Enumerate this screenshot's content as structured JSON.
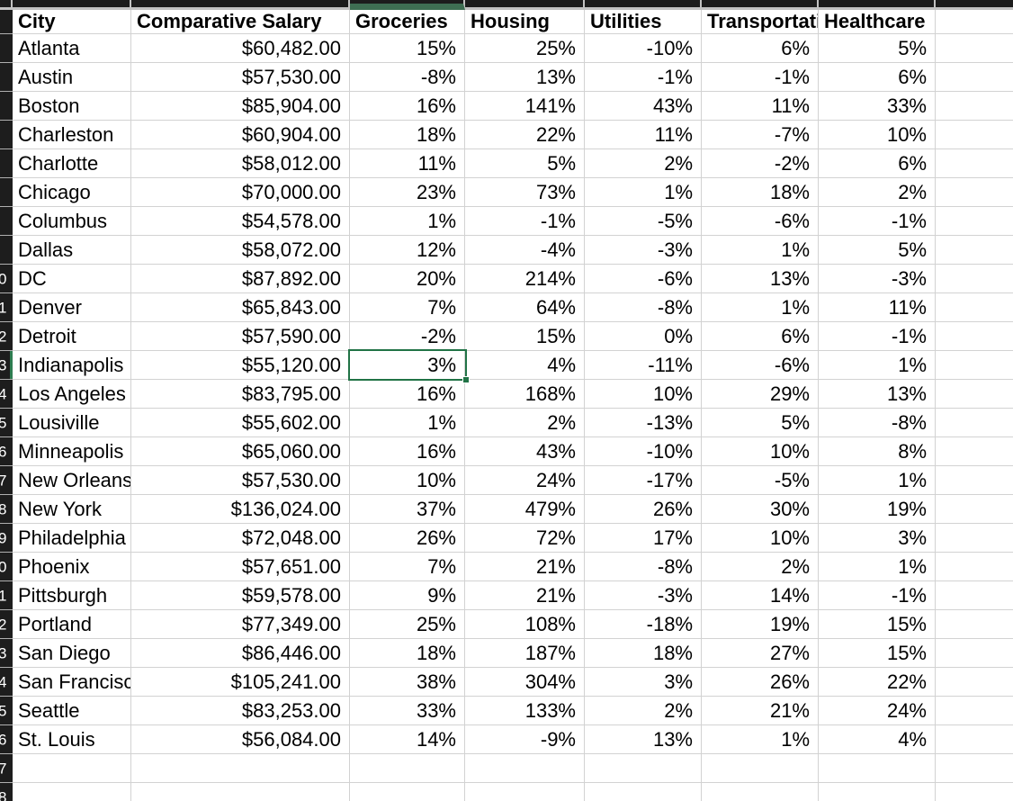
{
  "colors": {
    "selection_border": "#217346",
    "strip_bg": "#1c1c1c",
    "strip_selected": "#3e6e52",
    "strip_line": "#c2c2c2",
    "gutter_bg": "#1d1d1d",
    "gutter_line": "#b0b0b0",
    "gutter_sel": "#2e7d51",
    "gutter_text": "#ffffff",
    "gridline": "#d2d2d2",
    "text": "#000000"
  },
  "sheet": {
    "columns": [
      {
        "label": "City"
      },
      {
        "label": "Comparative Salary"
      },
      {
        "label": "Groceries"
      },
      {
        "label": "Housing"
      },
      {
        "label": "Utilities"
      },
      {
        "label": "Transportation"
      },
      {
        "label": "Healthcare"
      }
    ],
    "header_gutter": "",
    "rows": [
      {
        "gutter": "",
        "city": "Atlanta",
        "salary": "$60,482.00",
        "groceries": "15%",
        "housing": "25%",
        "utilities": "-10%",
        "transportation": "6%",
        "healthcare": "5%"
      },
      {
        "gutter": "",
        "city": "Austin",
        "salary": "$57,530.00",
        "groceries": "-8%",
        "housing": "13%",
        "utilities": "-1%",
        "transportation": "-1%",
        "healthcare": "6%"
      },
      {
        "gutter": "",
        "city": "Boston",
        "salary": "$85,904.00",
        "groceries": "16%",
        "housing": "141%",
        "utilities": "43%",
        "transportation": "11%",
        "healthcare": "33%"
      },
      {
        "gutter": "",
        "city": "Charleston",
        "salary": "$60,904.00",
        "groceries": "18%",
        "housing": "22%",
        "utilities": "11%",
        "transportation": "-7%",
        "healthcare": "10%"
      },
      {
        "gutter": "",
        "city": "Charlotte",
        "salary": "$58,012.00",
        "groceries": "11%",
        "housing": "5%",
        "utilities": "2%",
        "transportation": "-2%",
        "healthcare": "6%"
      },
      {
        "gutter": "",
        "city": "Chicago",
        "salary": "$70,000.00",
        "groceries": "23%",
        "housing": "73%",
        "utilities": "1%",
        "transportation": "18%",
        "healthcare": "2%"
      },
      {
        "gutter": "",
        "city": "Columbus",
        "salary": "$54,578.00",
        "groceries": "1%",
        "housing": "-1%",
        "utilities": "-5%",
        "transportation": "-6%",
        "healthcare": "-1%"
      },
      {
        "gutter": "",
        "city": "Dallas",
        "salary": "$58,072.00",
        "groceries": "12%",
        "housing": "-4%",
        "utilities": "-3%",
        "transportation": "1%",
        "healthcare": "5%"
      },
      {
        "gutter": "0",
        "city": "DC",
        "salary": "$87,892.00",
        "groceries": "20%",
        "housing": "214%",
        "utilities": "-6%",
        "transportation": "13%",
        "healthcare": "-3%"
      },
      {
        "gutter": "1",
        "city": "Denver",
        "salary": "$65,843.00",
        "groceries": "7%",
        "housing": "64%",
        "utilities": "-8%",
        "transportation": "1%",
        "healthcare": "11%"
      },
      {
        "gutter": "2",
        "city": "Detroit",
        "salary": "$57,590.00",
        "groceries": "-2%",
        "housing": "15%",
        "utilities": "0%",
        "transportation": "6%",
        "healthcare": "-1%"
      },
      {
        "gutter": "3",
        "city": "Indianapolis",
        "salary": "$55,120.00",
        "groceries": "3%",
        "housing": "4%",
        "utilities": "-11%",
        "transportation": "-6%",
        "healthcare": "1%"
      },
      {
        "gutter": "4",
        "city": "Los Angeles",
        "salary": "$83,795.00",
        "groceries": "16%",
        "housing": "168%",
        "utilities": "10%",
        "transportation": "29%",
        "healthcare": "13%"
      },
      {
        "gutter": "5",
        "city": "Lousiville",
        "salary": "$55,602.00",
        "groceries": "1%",
        "housing": "2%",
        "utilities": "-13%",
        "transportation": "5%",
        "healthcare": "-8%"
      },
      {
        "gutter": "6",
        "city": "Minneapolis",
        "salary": "$65,060.00",
        "groceries": "16%",
        "housing": "43%",
        "utilities": "-10%",
        "transportation": "10%",
        "healthcare": "8%"
      },
      {
        "gutter": "7",
        "city": "New Orleans",
        "salary": "$57,530.00",
        "groceries": "10%",
        "housing": "24%",
        "utilities": "-17%",
        "transportation": "-5%",
        "healthcare": "1%"
      },
      {
        "gutter": "8",
        "city": "New York",
        "salary": "$136,024.00",
        "groceries": "37%",
        "housing": "479%",
        "utilities": "26%",
        "transportation": "30%",
        "healthcare": "19%"
      },
      {
        "gutter": "9",
        "city": "Philadelphia",
        "salary": "$72,048.00",
        "groceries": "26%",
        "housing": "72%",
        "utilities": "17%",
        "transportation": "10%",
        "healthcare": "3%"
      },
      {
        "gutter": "0",
        "city": "Phoenix",
        "salary": "$57,651.00",
        "groceries": "7%",
        "housing": "21%",
        "utilities": "-8%",
        "transportation": "2%",
        "healthcare": "1%"
      },
      {
        "gutter": "1",
        "city": "Pittsburgh",
        "salary": "$59,578.00",
        "groceries": "9%",
        "housing": "21%",
        "utilities": "-3%",
        "transportation": "14%",
        "healthcare": "-1%"
      },
      {
        "gutter": "2",
        "city": "Portland",
        "salary": "$77,349.00",
        "groceries": "25%",
        "housing": "108%",
        "utilities": "-18%",
        "transportation": "19%",
        "healthcare": "15%"
      },
      {
        "gutter": "3",
        "city": "San Diego",
        "salary": "$86,446.00",
        "groceries": "18%",
        "housing": "187%",
        "utilities": "18%",
        "transportation": "27%",
        "healthcare": "15%"
      },
      {
        "gutter": "4",
        "city": "San Francisco",
        "salary": "$105,241.00",
        "groceries": "38%",
        "housing": "304%",
        "utilities": "3%",
        "transportation": "26%",
        "healthcare": "22%"
      },
      {
        "gutter": "5",
        "city": "Seattle",
        "salary": "$83,253.00",
        "groceries": "33%",
        "housing": "133%",
        "utilities": "2%",
        "transportation": "21%",
        "healthcare": "24%"
      },
      {
        "gutter": "6",
        "city": "St. Louis",
        "salary": "$56,084.00",
        "groceries": "14%",
        "housing": "-9%",
        "utilities": "13%",
        "transportation": "1%",
        "healthcare": "4%"
      }
    ],
    "trailing_rows": [
      {
        "gutter": "7"
      },
      {
        "gutter": "8"
      }
    ],
    "selection": {
      "city": "Indianapolis",
      "column": "Groceries",
      "value": "3%"
    }
  }
}
